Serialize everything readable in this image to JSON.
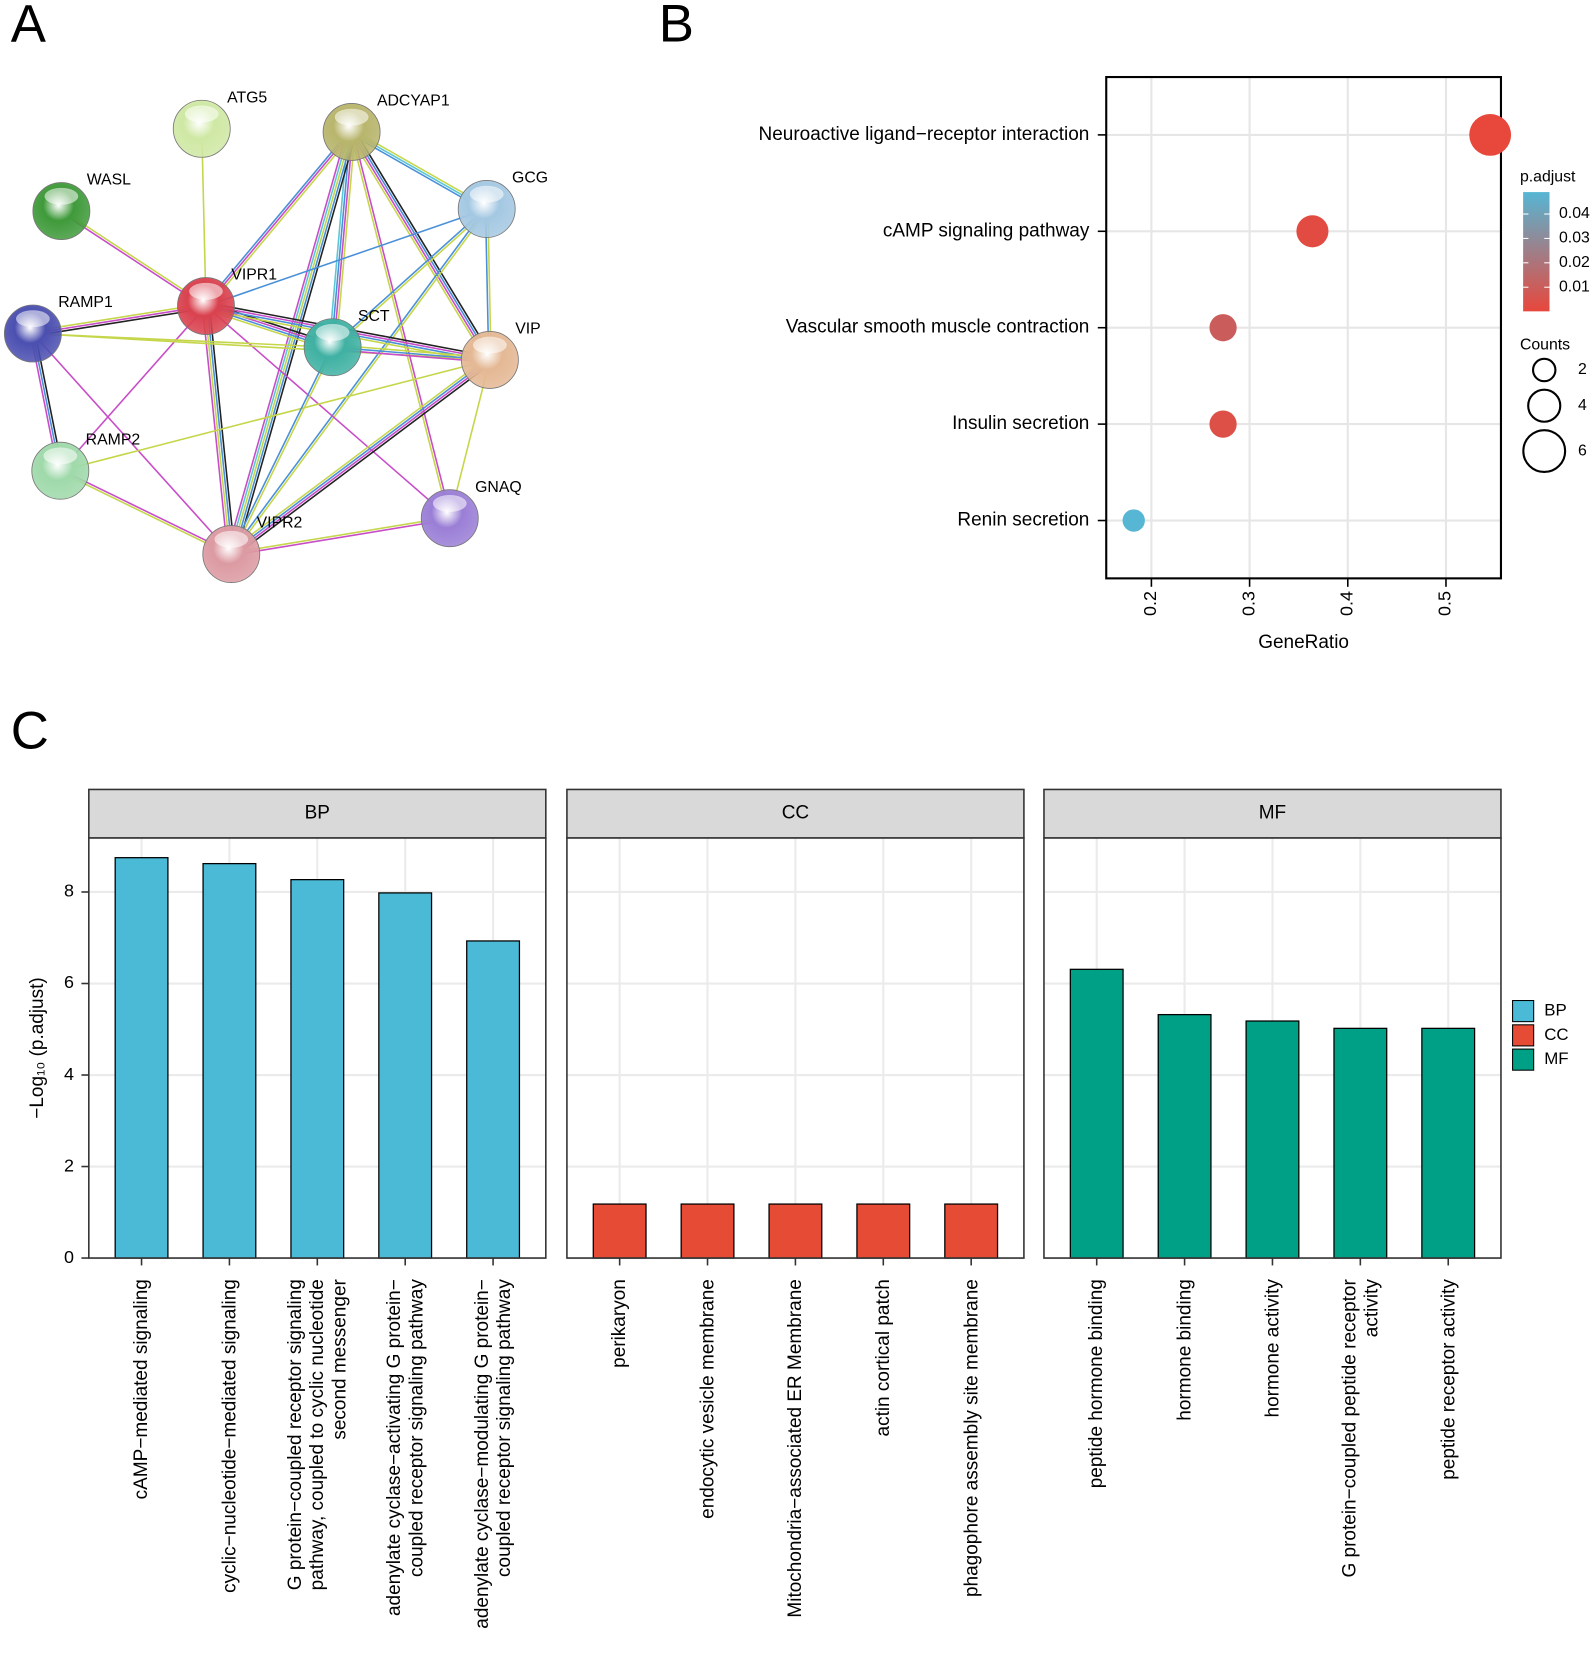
{
  "panel_labels": [
    "A",
    "B",
    "C"
  ],
  "network": {
    "nodes": [
      "ATG5",
      "ADCYAP1",
      "WASL",
      "GCG",
      "VIPR1",
      "RAMP1",
      "SCT",
      "VIP",
      "RAMP2",
      "GNAQ",
      "VIPR2"
    ]
  },
  "chart_data": [
    {
      "type": "dot",
      "categories": [
        "Neuroactive ligand−receptor interaction",
        "cAMP signaling pathway",
        "Vascular smooth muscle contraction",
        "Insulin secretion",
        "Renin secretion"
      ],
      "values": [
        0.545,
        0.364,
        0.273,
        0.273,
        0.182
      ],
      "counts": [
        6,
        4,
        3,
        3,
        2
      ],
      "p_adjust": [
        0.0001,
        0.002,
        0.01,
        0.004,
        0.049
      ],
      "xlabel": "GeneRatio",
      "xlim": [
        0.154,
        0.556
      ],
      "xticks": [
        0.2,
        0.3,
        0.4,
        0.5
      ],
      "grid": true,
      "color_title": "p.adjust",
      "clim": [
        0.0001,
        0.049
      ],
      "cticks": [
        0.01,
        0.02,
        0.03,
        0.04
      ],
      "colors": [
        "#e8473c",
        "#56b6d4"
      ],
      "size_title": "Counts",
      "size_ticks": [
        2,
        4,
        6
      ]
    },
    {
      "type": "facet_bar",
      "ylabel": "−Log₁₀ (p.adjust)",
      "ylim": [
        0,
        9.18
      ],
      "yticks": [
        0,
        2,
        4,
        6,
        8
      ],
      "grid": true,
      "legend": "right",
      "series": [
        {
          "name": "BP",
          "color": "#4bbad6",
          "categories": [
            "cAMP−mediated signaling",
            "cyclic−nucleotide−mediated signaling",
            "G protein−coupled receptor signaling\npathway, coupled to cyclic nucleotide\nsecond messenger",
            "adenylate cyclase−activating G protein−\ncoupled receptor signaling pathway",
            "adenylate cyclase−modulating G protein−\ncoupled receptor signaling pathway"
          ],
          "values": [
            8.75,
            8.62,
            8.27,
            7.98,
            6.93
          ]
        },
        {
          "name": "CC",
          "color": "#e64b35",
          "categories": [
            "perikaryon",
            "endocytic vesicle membrane",
            "Mitochondria−associated ER Membrane",
            "actin cortical patch",
            "phagophore assembly site membrane"
          ],
          "values": [
            1.18,
            1.18,
            1.18,
            1.18,
            1.18
          ]
        },
        {
          "name": "MF",
          "color": "#00a087",
          "categories": [
            "peptide hormone binding",
            "hormone binding",
            "hormone activity",
            "G protein−coupled peptide receptor\nactivity",
            "peptide receptor activity"
          ],
          "values": [
            6.31,
            5.32,
            5.18,
            5.02,
            5.02
          ]
        }
      ]
    }
  ]
}
